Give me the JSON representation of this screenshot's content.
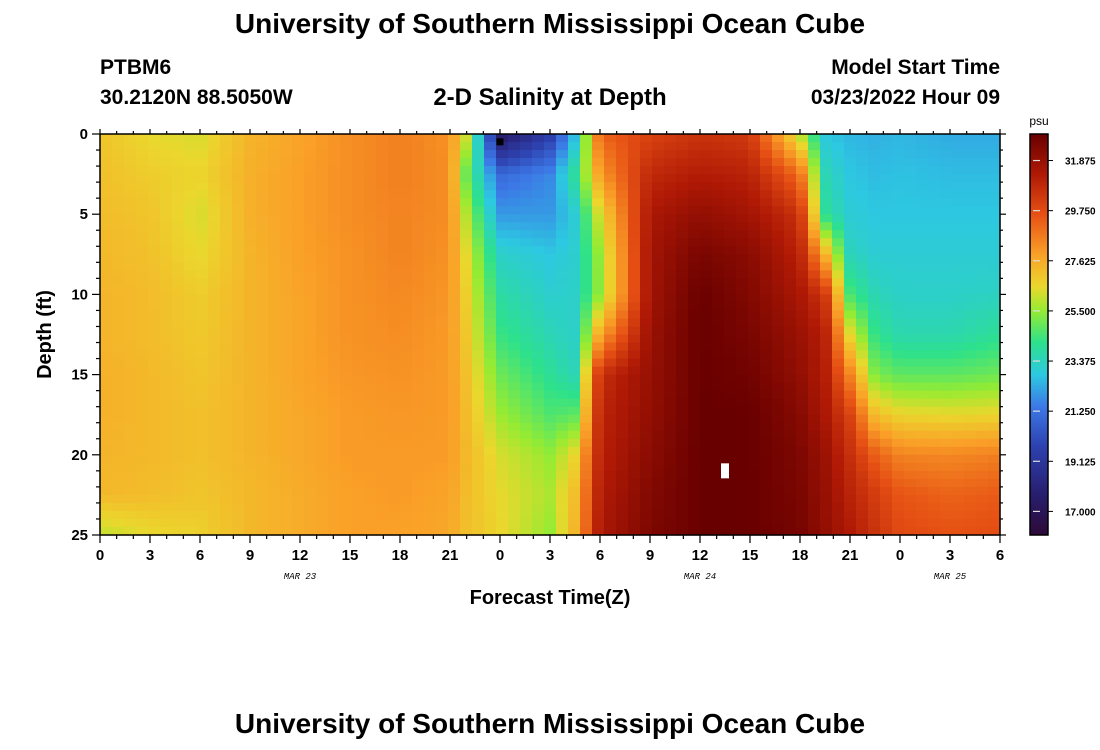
{
  "header": {
    "title": "University of Southern Mississippi Ocean Cube",
    "station_id": "PTBM6",
    "station_coords": "30.2120N  88.5050W",
    "plot_title": "2-D Salinity at Depth",
    "model_start_label": "Model Start Time",
    "model_start_time": "03/23/2022 Hour 09"
  },
  "footer": {
    "title": "University of Southern Mississippi Ocean Cube"
  },
  "chart_data": {
    "type": "heatmap",
    "title": "2-D Salinity at Depth",
    "xlabel": "Forecast Time(Z)",
    "ylabel": "Depth (ft)",
    "x_tick_labels": [
      "0",
      "3",
      "6",
      "9",
      "12",
      "15",
      "18",
      "21",
      "0",
      "3",
      "6",
      "9",
      "12",
      "15",
      "18",
      "21",
      "0",
      "3",
      "6"
    ],
    "x_range_hours": [
      0,
      54
    ],
    "date_labels": [
      {
        "label": "MAR 23",
        "hour": 12
      },
      {
        "label": "MAR 24",
        "hour": 36
      },
      {
        "label": "MAR 25",
        "hour": 51
      }
    ],
    "y_tick_labels": [
      "0",
      "5",
      "10",
      "15",
      "20",
      "25"
    ],
    "y_range_ft": [
      0,
      25
    ],
    "colorbar": {
      "unit": "psu",
      "range": [
        16.0,
        33.0
      ],
      "tick_labels": [
        "31.875",
        "29.750",
        "27.625",
        "25.500",
        "23.375",
        "21.250",
        "19.125",
        "17.000"
      ],
      "tick_values": [
        31.875,
        29.75,
        27.625,
        25.5,
        23.375,
        21.25,
        19.125,
        17.0
      ]
    },
    "markers": [
      {
        "hour": 24.0,
        "depth_ft": 0.3,
        "color": "#000000"
      },
      {
        "hour": 37.5,
        "depth_ft": 21.0,
        "color": "#ffffff"
      }
    ],
    "time_hours": [
      0,
      3,
      6,
      9,
      12,
      15,
      18,
      21,
      22,
      24,
      27,
      28.5,
      30,
      33,
      36,
      39,
      42,
      43.5,
      45,
      46.5,
      48,
      51,
      54
    ],
    "depths_ft": [
      0,
      2.5,
      5,
      7.5,
      10,
      12.5,
      15,
      17.5,
      20,
      22.5,
      25
    ],
    "salinity_psu": [
      [
        27.0,
        26.5,
        26.3,
        27.4,
        27.8,
        28.3,
        28.6,
        28.2,
        26.2,
        17.3,
        19.5,
        22.6,
        29.2,
        30.0,
        30.5,
        30.3,
        26.0,
        22.8,
        22.5,
        22.4,
        22.5,
        22.3,
        22.3
      ],
      [
        27.1,
        26.8,
        26.6,
        27.5,
        27.9,
        28.3,
        28.6,
        28.3,
        24.8,
        21.0,
        21.7,
        24.0,
        28.0,
        30.8,
        31.2,
        31.0,
        29.0,
        23.5,
        22.8,
        22.6,
        22.7,
        22.6,
        22.6
      ],
      [
        27.2,
        27.0,
        26.3,
        27.5,
        27.9,
        28.3,
        28.5,
        28.3,
        25.8,
        22.0,
        22.0,
        23.0,
        26.4,
        31.4,
        32.0,
        31.6,
        30.5,
        24.0,
        23.0,
        22.8,
        22.8,
        22.8,
        22.8
      ],
      [
        27.3,
        27.1,
        26.5,
        27.4,
        27.9,
        28.2,
        28.5,
        28.2,
        26.4,
        23.2,
        22.8,
        23.1,
        25.6,
        31.6,
        32.6,
        32.2,
        31.0,
        27.5,
        23.4,
        23.0,
        23.0,
        23.0,
        23.0
      ],
      [
        27.4,
        27.2,
        26.8,
        27.4,
        27.8,
        28.2,
        28.4,
        28.1,
        26.7,
        23.8,
        23.1,
        23.2,
        25.5,
        31.6,
        33.0,
        32.4,
        31.4,
        30.4,
        24.5,
        23.5,
        23.2,
        23.2,
        23.3
      ],
      [
        27.4,
        27.2,
        26.9,
        27.4,
        27.8,
        28.2,
        28.3,
        28.0,
        26.9,
        24.3,
        23.5,
        23.2,
        27.8,
        31.8,
        33.0,
        32.6,
        31.8,
        31.1,
        26.5,
        24.2,
        23.6,
        23.6,
        24.0
      ],
      [
        27.5,
        27.3,
        27.0,
        27.4,
        27.8,
        28.1,
        28.2,
        28.0,
        27.1,
        25.0,
        24.0,
        23.5,
        30.6,
        31.9,
        33.0,
        32.8,
        32.0,
        31.2,
        28.5,
        25.2,
        24.8,
        24.8,
        25.0
      ],
      [
        27.5,
        27.3,
        27.1,
        27.4,
        27.7,
        28.0,
        28.1,
        28.0,
        27.2,
        25.6,
        24.6,
        24.8,
        30.9,
        32.0,
        33.0,
        33.0,
        32.3,
        31.4,
        30.0,
        27.2,
        26.6,
        26.5,
        26.6
      ],
      [
        27.4,
        27.3,
        27.1,
        27.4,
        27.7,
        28.0,
        28.0,
        28.0,
        27.3,
        26.3,
        25.5,
        26.6,
        31.0,
        32.2,
        33.0,
        33.0,
        32.5,
        31.8,
        30.6,
        29.3,
        28.5,
        28.4,
        28.6
      ],
      [
        27.3,
        27.2,
        27.0,
        27.3,
        27.6,
        27.9,
        28.0,
        27.8,
        27.2,
        26.5,
        25.8,
        27.2,
        31.2,
        32.4,
        33.0,
        33.0,
        32.6,
        31.9,
        31.0,
        30.2,
        29.5,
        29.2,
        29.4
      ],
      [
        26.0,
        26.5,
        26.7,
        27.3,
        27.6,
        27.9,
        27.9,
        27.7,
        27.1,
        26.6,
        25.5,
        27.4,
        31.4,
        32.5,
        33.0,
        33.0,
        32.7,
        32.0,
        31.3,
        30.5,
        29.8,
        29.6,
        29.7
      ]
    ]
  }
}
